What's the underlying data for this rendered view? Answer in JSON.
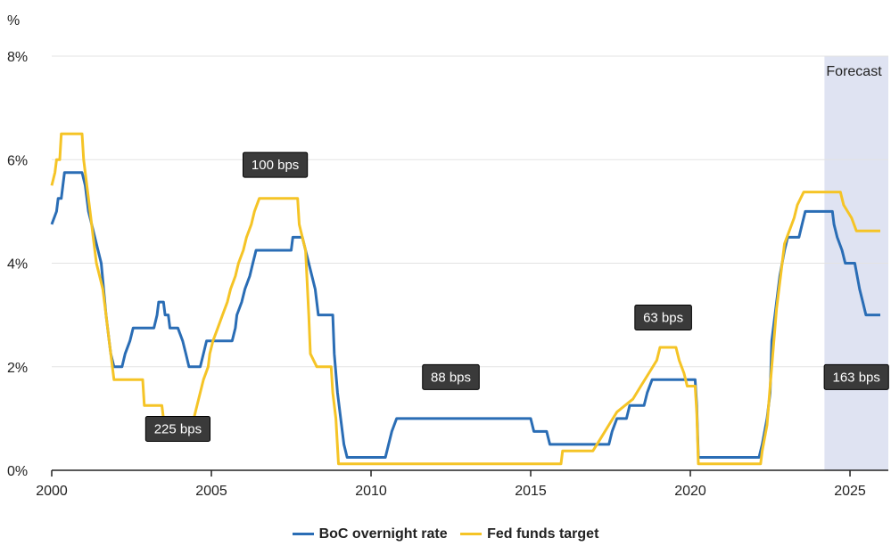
{
  "chart_data": {
    "type": "line",
    "unit_label": "%",
    "xlim": [
      2000,
      2026.2
    ],
    "ylim": [
      0,
      8
    ],
    "x_ticks": [
      2000,
      2005,
      2010,
      2015,
      2020,
      2025
    ],
    "y_ticks": [
      {
        "value": 0,
        "label": "0%"
      },
      {
        "value": 2,
        "label": "2%"
      },
      {
        "value": 4,
        "label": "4%"
      },
      {
        "value": 6,
        "label": "6%"
      },
      {
        "value": 8,
        "label": "8%"
      }
    ],
    "grid": "horizontal",
    "forecast": {
      "start": 2024.2,
      "end": 2026.2,
      "label": "Forecast",
      "color": "#dfe3f2"
    },
    "series": [
      {
        "name": "BoC overnight rate",
        "color": "#2a6db5",
        "points": [
          [
            2000.0,
            4.75
          ],
          [
            2000.15,
            5.0
          ],
          [
            2000.2,
            5.25
          ],
          [
            2000.3,
            5.25
          ],
          [
            2000.35,
            5.5
          ],
          [
            2000.4,
            5.75
          ],
          [
            2000.95,
            5.75
          ],
          [
            2001.05,
            5.5
          ],
          [
            2001.15,
            5.0
          ],
          [
            2001.25,
            4.75
          ],
          [
            2001.35,
            4.5
          ],
          [
            2001.45,
            4.25
          ],
          [
            2001.55,
            4.0
          ],
          [
            2001.7,
            3.0
          ],
          [
            2001.8,
            2.5
          ],
          [
            2001.85,
            2.25
          ],
          [
            2001.95,
            2.0
          ],
          [
            2002.2,
            2.0
          ],
          [
            2002.3,
            2.25
          ],
          [
            2002.45,
            2.5
          ],
          [
            2002.55,
            2.75
          ],
          [
            2003.2,
            2.75
          ],
          [
            2003.3,
            3.0
          ],
          [
            2003.35,
            3.25
          ],
          [
            2003.5,
            3.25
          ],
          [
            2003.55,
            3.0
          ],
          [
            2003.65,
            3.0
          ],
          [
            2003.7,
            2.75
          ],
          [
            2003.95,
            2.75
          ],
          [
            2004.1,
            2.5
          ],
          [
            2004.2,
            2.25
          ],
          [
            2004.3,
            2.0
          ],
          [
            2004.65,
            2.0
          ],
          [
            2004.75,
            2.25
          ],
          [
            2004.85,
            2.5
          ],
          [
            2005.65,
            2.5
          ],
          [
            2005.75,
            2.75
          ],
          [
            2005.8,
            3.0
          ],
          [
            2005.95,
            3.25
          ],
          [
            2006.05,
            3.5
          ],
          [
            2006.2,
            3.75
          ],
          [
            2006.3,
            4.0
          ],
          [
            2006.4,
            4.25
          ],
          [
            2007.5,
            4.25
          ],
          [
            2007.55,
            4.5
          ],
          [
            2007.85,
            4.5
          ],
          [
            2007.95,
            4.25
          ],
          [
            2008.05,
            4.0
          ],
          [
            2008.25,
            3.5
          ],
          [
            2008.35,
            3.0
          ],
          [
            2008.8,
            3.0
          ],
          [
            2008.85,
            2.25
          ],
          [
            2008.95,
            1.5
          ],
          [
            2009.05,
            1.0
          ],
          [
            2009.15,
            0.5
          ],
          [
            2009.25,
            0.25
          ],
          [
            2010.45,
            0.25
          ],
          [
            2010.55,
            0.5
          ],
          [
            2010.65,
            0.75
          ],
          [
            2010.8,
            1.0
          ],
          [
            2015.0,
            1.0
          ],
          [
            2015.1,
            0.75
          ],
          [
            2015.5,
            0.75
          ],
          [
            2015.6,
            0.5
          ],
          [
            2017.45,
            0.5
          ],
          [
            2017.55,
            0.75
          ],
          [
            2017.7,
            1.0
          ],
          [
            2018.0,
            1.0
          ],
          [
            2018.1,
            1.25
          ],
          [
            2018.55,
            1.25
          ],
          [
            2018.65,
            1.5
          ],
          [
            2018.8,
            1.75
          ],
          [
            2020.15,
            1.75
          ],
          [
            2020.2,
            1.25
          ],
          [
            2020.25,
            0.25
          ],
          [
            2022.15,
            0.25
          ],
          [
            2022.25,
            0.5
          ],
          [
            2022.4,
            1.0
          ],
          [
            2022.5,
            1.5
          ],
          [
            2022.55,
            2.5
          ],
          [
            2022.7,
            3.25
          ],
          [
            2022.8,
            3.75
          ],
          [
            2022.95,
            4.25
          ],
          [
            2023.05,
            4.5
          ],
          [
            2023.4,
            4.5
          ],
          [
            2023.5,
            4.75
          ],
          [
            2023.6,
            5.0
          ],
          [
            2024.45,
            5.0
          ],
          [
            2024.5,
            4.75
          ],
          [
            2024.6,
            4.5
          ],
          [
            2024.75,
            4.25
          ],
          [
            2024.85,
            4.0
          ],
          [
            2025.15,
            4.0
          ],
          [
            2025.3,
            3.5
          ],
          [
            2025.4,
            3.25
          ],
          [
            2025.5,
            3.0
          ],
          [
            2025.95,
            3.0
          ]
        ]
      },
      {
        "name": "Fed funds target",
        "color": "#f5c426",
        "points": [
          [
            2000.0,
            5.5
          ],
          [
            2000.1,
            5.75
          ],
          [
            2000.15,
            6.0
          ],
          [
            2000.25,
            6.0
          ],
          [
            2000.3,
            6.5
          ],
          [
            2000.95,
            6.5
          ],
          [
            2001.0,
            6.0
          ],
          [
            2001.1,
            5.5
          ],
          [
            2001.2,
            5.0
          ],
          [
            2001.3,
            4.5
          ],
          [
            2001.4,
            4.0
          ],
          [
            2001.5,
            3.75
          ],
          [
            2001.6,
            3.5
          ],
          [
            2001.7,
            3.0
          ],
          [
            2001.8,
            2.5
          ],
          [
            2001.9,
            2.0
          ],
          [
            2001.95,
            1.75
          ],
          [
            2002.85,
            1.75
          ],
          [
            2002.9,
            1.25
          ],
          [
            2003.45,
            1.25
          ],
          [
            2003.5,
            1.0
          ],
          [
            2004.45,
            1.0
          ],
          [
            2004.55,
            1.25
          ],
          [
            2004.65,
            1.5
          ],
          [
            2004.75,
            1.75
          ],
          [
            2004.9,
            2.0
          ],
          [
            2004.95,
            2.25
          ],
          [
            2005.05,
            2.5
          ],
          [
            2005.2,
            2.75
          ],
          [
            2005.35,
            3.0
          ],
          [
            2005.5,
            3.25
          ],
          [
            2005.6,
            3.5
          ],
          [
            2005.75,
            3.75
          ],
          [
            2005.85,
            4.0
          ],
          [
            2006.0,
            4.25
          ],
          [
            2006.1,
            4.5
          ],
          [
            2006.25,
            4.75
          ],
          [
            2006.35,
            5.0
          ],
          [
            2006.5,
            5.25
          ],
          [
            2007.7,
            5.25
          ],
          [
            2007.75,
            4.75
          ],
          [
            2007.85,
            4.5
          ],
          [
            2007.95,
            4.25
          ],
          [
            2008.05,
            3.0
          ],
          [
            2008.1,
            2.25
          ],
          [
            2008.3,
            2.0
          ],
          [
            2008.75,
            2.0
          ],
          [
            2008.8,
            1.5
          ],
          [
            2008.9,
            1.0
          ],
          [
            2008.98,
            0.125
          ],
          [
            2015.95,
            0.125
          ],
          [
            2016.0,
            0.375
          ],
          [
            2016.95,
            0.375
          ],
          [
            2017.2,
            0.625
          ],
          [
            2017.45,
            0.875
          ],
          [
            2017.7,
            1.125
          ],
          [
            2018.2,
            1.375
          ],
          [
            2018.45,
            1.625
          ],
          [
            2018.7,
            1.875
          ],
          [
            2018.95,
            2.125
          ],
          [
            2019.05,
            2.375
          ],
          [
            2019.55,
            2.375
          ],
          [
            2019.65,
            2.125
          ],
          [
            2019.8,
            1.875
          ],
          [
            2019.9,
            1.625
          ],
          [
            2020.15,
            1.625
          ],
          [
            2020.2,
            1.125
          ],
          [
            2020.25,
            0.125
          ],
          [
            2022.2,
            0.125
          ],
          [
            2022.25,
            0.375
          ],
          [
            2022.4,
            0.875
          ],
          [
            2022.5,
            1.625
          ],
          [
            2022.6,
            2.375
          ],
          [
            2022.7,
            3.125
          ],
          [
            2022.85,
            3.875
          ],
          [
            2022.95,
            4.375
          ],
          [
            2023.1,
            4.625
          ],
          [
            2023.25,
            4.875
          ],
          [
            2023.35,
            5.125
          ],
          [
            2023.55,
            5.375
          ],
          [
            2024.7,
            5.375
          ],
          [
            2024.8,
            5.125
          ],
          [
            2025.05,
            4.875
          ],
          [
            2025.2,
            4.625
          ],
          [
            2025.95,
            4.625
          ]
        ]
      }
    ],
    "annotations": [
      {
        "text": "225 bps",
        "x": 2003.95,
        "y": 0.8
      },
      {
        "text": "100 bps",
        "x": 2007.0,
        "y": 5.9
      },
      {
        "text": "88 bps",
        "x": 2012.5,
        "y": 1.8
      },
      {
        "text": "63 bps",
        "x": 2019.15,
        "y": 2.95
      },
      {
        "text": "163 bps",
        "x": 2025.2,
        "y": 1.8
      }
    ]
  }
}
